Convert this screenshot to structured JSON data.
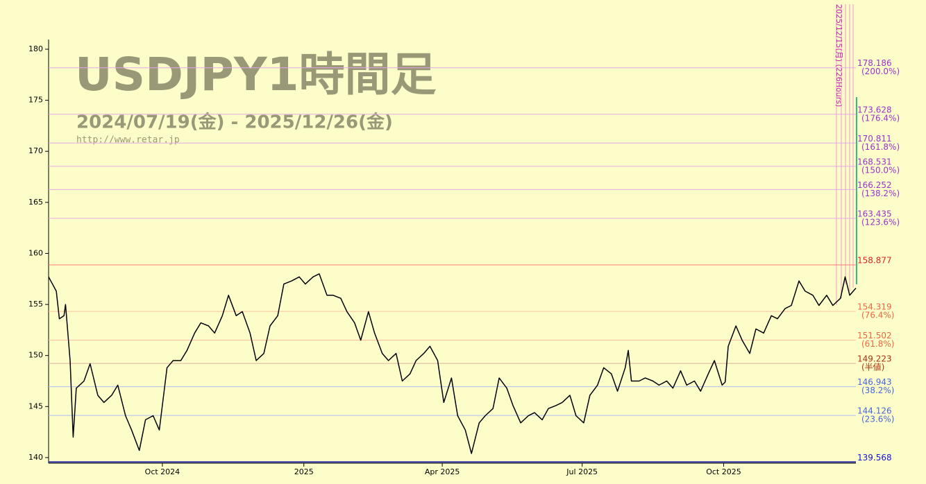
{
  "chart_data": {
    "type": "line",
    "title": "USDJPY1時間足",
    "subtitle": "2024/07/19(金) - 2025/12/26(金)",
    "source": "http://www.retar.jp",
    "annotation": "2025/12/15(月) (226Hours)",
    "xlim": [
      0,
      525
    ],
    "xticks": [
      {
        "value": 74,
        "label": "Oct 2024"
      },
      {
        "value": 166,
        "label": "2025"
      },
      {
        "value": 256,
        "label": "Apr 2025"
      },
      {
        "value": 347,
        "label": "Jul 2025"
      },
      {
        "value": 439,
        "label": "Oct 2025"
      }
    ],
    "ylim": [
      139.45,
      180.95
    ],
    "yticks": [
      140,
      145,
      150,
      155,
      160,
      165,
      170,
      175,
      180
    ],
    "series": [
      {
        "color": "#000000",
        "x": [
          0,
          5,
          7,
          10,
          11,
          14,
          16,
          18,
          23,
          27,
          32,
          36,
          41,
          45,
          50,
          54,
          59,
          63,
          68,
          72,
          77,
          81,
          86,
          90,
          95,
          99,
          104,
          108,
          113,
          117,
          122,
          126,
          131,
          135,
          140,
          144,
          149,
          153,
          158,
          163,
          167,
          172,
          176,
          181,
          185,
          190,
          194,
          199,
          203,
          208,
          212,
          217,
          221,
          226,
          230,
          235,
          239,
          244,
          248,
          253,
          257,
          262,
          266,
          271,
          275,
          280,
          284,
          289,
          293,
          298,
          302,
          307,
          312,
          316,
          321,
          325,
          330,
          334,
          339,
          343,
          348,
          352,
          357,
          361,
          366,
          370,
          375,
          377,
          379,
          384,
          388,
          393,
          397,
          402,
          406,
          411,
          415,
          420,
          424,
          429,
          433,
          438,
          440,
          442,
          447,
          451,
          456,
          460,
          465,
          470,
          474,
          479,
          483,
          488,
          492,
          497,
          501,
          506,
          510,
          515,
          518,
          521,
          525
        ],
        "values": [
          157.7,
          156.3,
          153.6,
          153.9,
          155,
          149.5,
          142,
          146.8,
          147.5,
          149.2,
          146.1,
          145.4,
          146.1,
          147.1,
          144.1,
          142.7,
          140.7,
          143.7,
          144.1,
          142.7,
          148.8,
          149.5,
          149.5,
          150.5,
          152.2,
          153.2,
          152.9,
          152.2,
          153.9,
          155.9,
          153.9,
          154.3,
          152.2,
          149.5,
          150.2,
          152.9,
          153.9,
          157,
          157.3,
          157.7,
          157,
          157.7,
          158,
          155.9,
          155.9,
          155.6,
          154.3,
          153.2,
          151.5,
          154.3,
          152.2,
          150.2,
          149.5,
          150.2,
          147.5,
          148.2,
          149.5,
          150.2,
          150.9,
          149.5,
          145.4,
          147.8,
          144.1,
          142.7,
          140.4,
          143.4,
          144.1,
          144.8,
          147.8,
          146.8,
          145.1,
          143.4,
          144.1,
          144.4,
          143.7,
          144.8,
          145.1,
          145.4,
          146.1,
          144.1,
          143.4,
          146.1,
          147.1,
          148.8,
          148.2,
          146.5,
          148.8,
          150.5,
          147.5,
          147.5,
          147.8,
          147.5,
          147.1,
          147.5,
          146.8,
          148.5,
          147.1,
          147.5,
          146.5,
          148.2,
          149.5,
          147.1,
          147.4,
          150.9,
          152.9,
          151.5,
          150.2,
          152.6,
          152.2,
          153.9,
          153.6,
          154.6,
          154.9,
          157.3,
          156.3,
          155.9,
          154.9,
          155.9,
          154.9,
          155.6,
          157.7,
          155.9,
          156.6
        ]
      }
    ],
    "levels": [
      {
        "value": 178.186,
        "note": "(200.0%)",
        "color": "#9933cc",
        "line_color": "#e8a8e8"
      },
      {
        "value": 173.628,
        "note": "(176.4%)",
        "color": "#9933cc",
        "line_color": "#e8a8e8"
      },
      {
        "value": 170.811,
        "note": "(161.8%)",
        "color": "#9933cc",
        "line_color": "#e8a8e8"
      },
      {
        "value": 168.531,
        "note": "(150.0%)",
        "color": "#9933cc",
        "line_color": "#e8a8e8"
      },
      {
        "value": 166.252,
        "note": "(138.2%)",
        "color": "#9933cc",
        "line_color": "#e8a8e8"
      },
      {
        "value": 163.435,
        "note": "(123.6%)",
        "color": "#9933cc",
        "line_color": "#e8a8e8"
      },
      {
        "value": 158.877,
        "color": "#dd2222",
        "line_color": "#ff7777"
      },
      {
        "value": 154.319,
        "note": "(76.4%)",
        "color": "#ee6644",
        "line_color": "#ffc0a0"
      },
      {
        "value": 151.502,
        "note": "(61.8%)",
        "color": "#ee6644",
        "line_color": "#ffc0a0"
      },
      {
        "value": 149.223,
        "note": "(半値)",
        "color": "#aa3311",
        "line_color": "#e0b0a0"
      },
      {
        "value": 146.943,
        "note": "(38.2%)",
        "color": "#4466dd",
        "line_color": "#b0c0ee"
      },
      {
        "value": 144.126,
        "note": "(23.6%)",
        "color": "#4466dd",
        "line_color": "#b0c0ee"
      },
      {
        "value": 139.568,
        "color": "#1111dd",
        "line_color": "#3333aa"
      }
    ]
  }
}
